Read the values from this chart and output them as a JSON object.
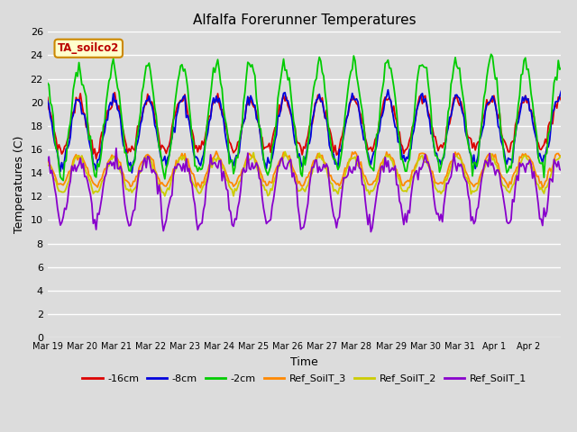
{
  "title": "Alfalfa Forerunner Temperatures",
  "xlabel": "Time",
  "ylabel": "Temperatures (C)",
  "ylim": [
    0,
    26
  ],
  "bg_color": "#dcdcdc",
  "legend_label": "TA_soilco2",
  "series": {
    "-16cm": {
      "color": "#dd0000",
      "lw": 1.3
    },
    "-8cm": {
      "color": "#0000dd",
      "lw": 1.3
    },
    "-2cm": {
      "color": "#00cc00",
      "lw": 1.3
    },
    "Ref_SoilT_3": {
      "color": "#ff8800",
      "lw": 1.3
    },
    "Ref_SoilT_2": {
      "color": "#cccc00",
      "lw": 1.3
    },
    "Ref_SoilT_1": {
      "color": "#8800cc",
      "lw": 1.3
    }
  },
  "n_points": 360,
  "hours_per_point": 1
}
